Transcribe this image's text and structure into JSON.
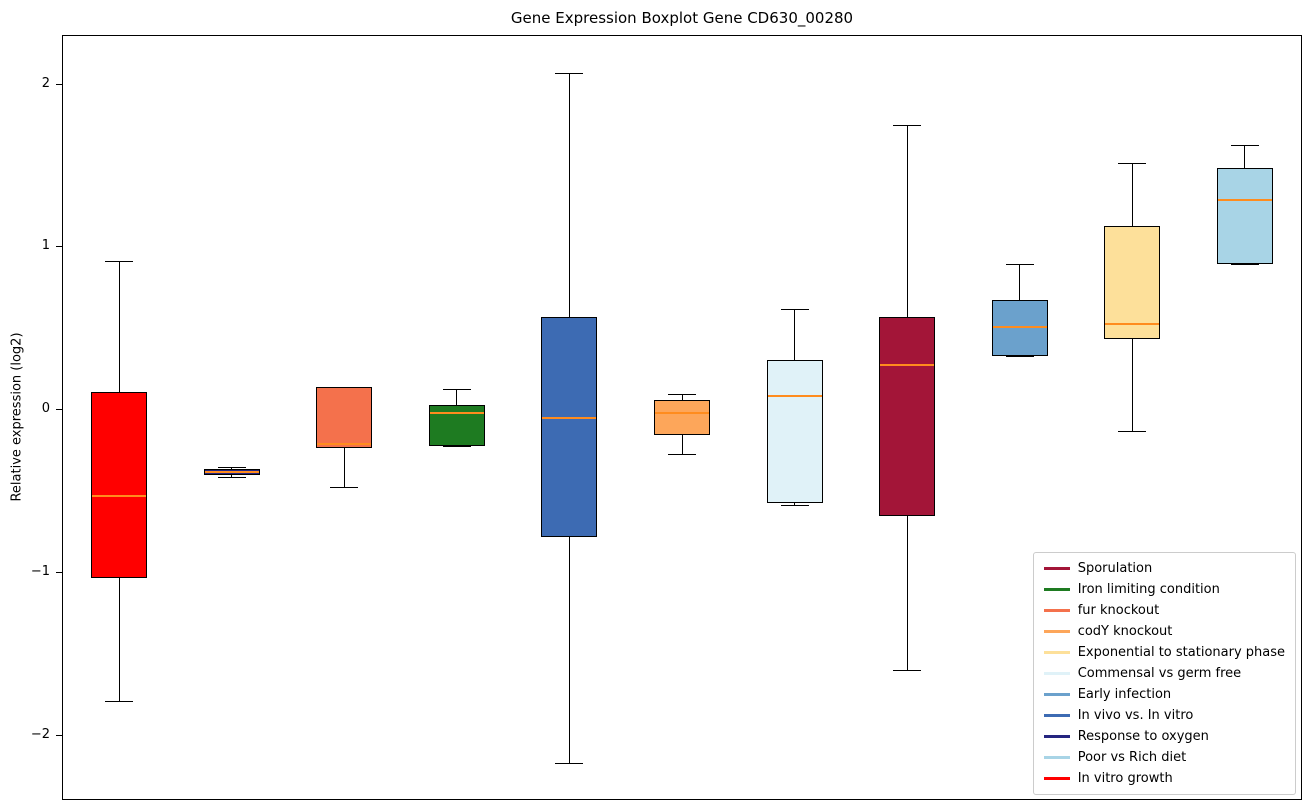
{
  "chart_data": {
    "type": "boxplot",
    "title": "Gene Expression Boxplot Gene CD630_00280",
    "ylabel": "Relative expression (log2)",
    "ylim": [
      -2.39,
      2.3
    ],
    "yticks": [
      {
        "value": 2,
        "label": "2"
      },
      {
        "value": 1,
        "label": "1"
      },
      {
        "value": 0,
        "label": "0"
      },
      {
        "value": -1,
        "label": "−1"
      },
      {
        "value": -2,
        "label": "−2"
      }
    ],
    "grid": false,
    "median_color": "#ff8c1e",
    "boxes": [
      {
        "label": "In vitro growth",
        "color": "#ff0000",
        "whislo": -1.79,
        "q1": -1.03,
        "med": -0.53,
        "q3": 0.11,
        "whishi": 0.92
      },
      {
        "label": "Response to oxygen",
        "color": "#252580",
        "whislo": -0.41,
        "q1": -0.4,
        "med": -0.38,
        "q3": -0.36,
        "whishi": -0.35
      },
      {
        "label": "fur knockout",
        "color": "#f4714c",
        "whislo": -0.47,
        "q1": -0.23,
        "med": -0.21,
        "q3": 0.14,
        "whishi": 0.14
      },
      {
        "label": "Iron limiting condition",
        "color": "#1e7b21",
        "whislo": -0.22,
        "q1": -0.22,
        "med": -0.02,
        "q3": 0.03,
        "whishi": 0.13
      },
      {
        "label": "In vivo vs. In vitro",
        "color": "#3d6bb3",
        "whislo": -2.17,
        "q1": -0.78,
        "med": -0.05,
        "q3": 0.57,
        "whishi": 2.07
      },
      {
        "label": "codY knockout",
        "color": "#fda65a",
        "whislo": -0.27,
        "q1": -0.15,
        "med": -0.02,
        "q3": 0.06,
        "whishi": 0.1
      },
      {
        "label": "Commensal vs germ free",
        "color": "#e0f2f8",
        "whislo": -0.58,
        "q1": -0.57,
        "med": 0.09,
        "q3": 0.31,
        "whishi": 0.62
      },
      {
        "label": "Sporulation",
        "color": "#a31538",
        "whislo": -1.6,
        "q1": -0.65,
        "med": 0.28,
        "q3": 0.57,
        "whishi": 1.75
      },
      {
        "label": "Early infection",
        "color": "#6ba1cc",
        "whislo": 0.33,
        "q1": 0.33,
        "med": 0.51,
        "q3": 0.68,
        "whishi": 0.9
      },
      {
        "label": "Exponential to stationary phase",
        "color": "#fde09a",
        "whislo": -0.13,
        "q1": 0.44,
        "med": 0.53,
        "q3": 1.13,
        "whishi": 1.52
      },
      {
        "label": "Poor vs Rich diet",
        "color": "#a8d4e6",
        "whislo": 0.9,
        "q1": 0.9,
        "med": 1.29,
        "q3": 1.49,
        "whishi": 1.63
      }
    ],
    "legend": {
      "position": "lower right",
      "entries": [
        {
          "label": "Sporulation",
          "color": "#a31538"
        },
        {
          "label": "Iron limiting condition",
          "color": "#1e7b21"
        },
        {
          "label": "fur knockout",
          "color": "#f4714c"
        },
        {
          "label": "codY knockout",
          "color": "#fda65a"
        },
        {
          "label": "Exponential to stationary phase",
          "color": "#fde09a"
        },
        {
          "label": "Commensal vs germ free",
          "color": "#e0f2f8"
        },
        {
          "label": "Early infection",
          "color": "#6ba1cc"
        },
        {
          "label": "In vivo vs. In vitro",
          "color": "#3d6bb3"
        },
        {
          "label": "Response to oxygen",
          "color": "#252580"
        },
        {
          "label": "Poor vs Rich diet",
          "color": "#a8d4e6"
        },
        {
          "label": "In vitro growth",
          "color": "#ff0000"
        }
      ]
    }
  }
}
